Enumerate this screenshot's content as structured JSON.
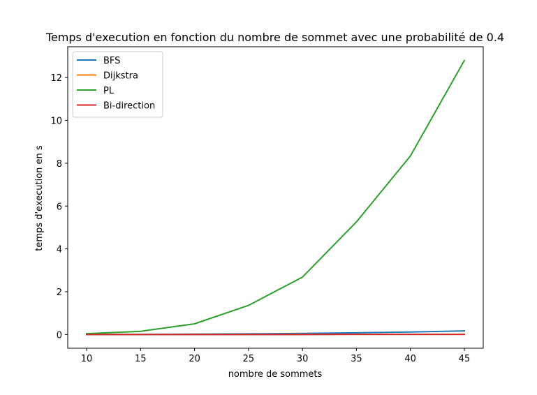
{
  "chart_data": {
    "type": "line",
    "title": "Temps d'execution en fonction du nombre de sommet avec une probabilité de 0.4",
    "xlabel": "nombre de sommets",
    "ylabel": "temps d'execution en s",
    "x": [
      10,
      15,
      20,
      25,
      30,
      35,
      40,
      45
    ],
    "xlim": [
      8.25,
      46.75
    ],
    "ylim": [
      -0.64,
      13.44
    ],
    "xticks": [
      10,
      15,
      20,
      25,
      30,
      35,
      40,
      45
    ],
    "yticks": [
      0,
      2,
      4,
      6,
      8,
      10,
      12
    ],
    "grid": false,
    "legend_position": "top-left",
    "series": [
      {
        "name": "BFS",
        "color": "#1f77b4",
        "values": [
          0.01,
          0.01,
          0.02,
          0.03,
          0.05,
          0.08,
          0.12,
          0.17
        ]
      },
      {
        "name": "Dijkstra",
        "color": "#ff7f0e",
        "values": [
          0.0,
          0.0,
          0.0,
          0.0,
          0.01,
          0.01,
          0.01,
          0.01
        ]
      },
      {
        "name": "PL",
        "color": "#2ca02c",
        "values": [
          0.04,
          0.15,
          0.5,
          1.36,
          2.68,
          5.26,
          8.34,
          12.8
        ]
      },
      {
        "name": "Bi-direction",
        "color": "#d62728",
        "values": [
          0.0,
          0.0,
          0.0,
          0.0,
          0.0,
          0.01,
          0.01,
          0.01
        ]
      }
    ]
  }
}
